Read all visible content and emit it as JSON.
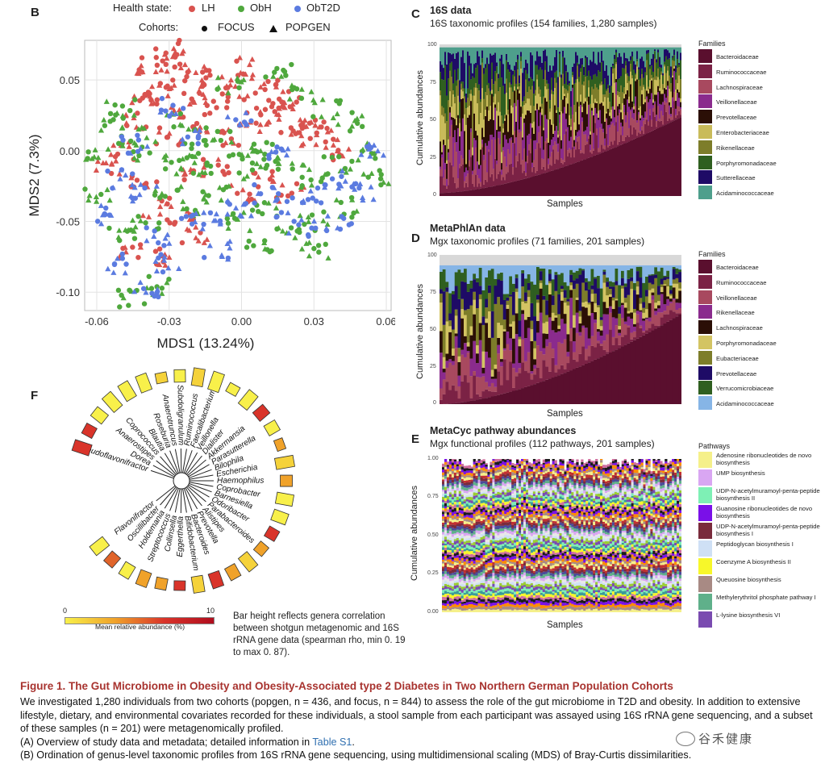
{
  "panel_b": {
    "letter": "B",
    "legend": {
      "health_title": "Health state:",
      "health": [
        {
          "label": "LH",
          "color": "#d9534f"
        },
        {
          "label": "ObH",
          "color": "#4fa83d"
        },
        {
          "label": "ObT2D",
          "color": "#5b7be0"
        }
      ],
      "cohort_title": "Cohorts:",
      "cohorts": [
        {
          "label": "FOCUS",
          "shape": "circle"
        },
        {
          "label": "POPGEN",
          "shape": "triangle"
        }
      ]
    }
  },
  "panel_c": {
    "letter": "C",
    "title": "16S data",
    "subtitle": "16S taxonomic profiles (154 families, 1,280 samples)",
    "ylabel": "Cumulative abundances",
    "xlabel": "Samples",
    "legend_title": "Families",
    "families": [
      {
        "name": "Bacteroidaceae",
        "color": "#5a0f2e"
      },
      {
        "name": "Ruminococcaceae",
        "color": "#7b2245"
      },
      {
        "name": "Lachnospiraceae",
        "color": "#a8495f"
      },
      {
        "name": "Veillonellaceae",
        "color": "#8a2b8d"
      },
      {
        "name": "Prevotellaceae",
        "color": "#2b0f06"
      },
      {
        "name": "Enterobacteriaceae",
        "color": "#c9bb5a"
      },
      {
        "name": "Rikenellaceae",
        "color": "#7d7d2a"
      },
      {
        "name": "Porphyromonadaceae",
        "color": "#2f5f20"
      },
      {
        "name": "Sutterellaceae",
        "color": "#1e0b66"
      },
      {
        "name": "Acidaminococcaceae",
        "color": "#4e9f8c"
      }
    ]
  },
  "panel_d": {
    "letter": "D",
    "title": "MetaPhlAn data",
    "subtitle": "Mgx taxonomic profiles (71 families, 201 samples)",
    "ylabel": "Cumulative abundances",
    "xlabel": "Samples",
    "legend_title": "Families",
    "families": [
      {
        "name": "Bacteroidaceae",
        "color": "#5a0f2e"
      },
      {
        "name": "Ruminococcaceae",
        "color": "#7b2245"
      },
      {
        "name": "Veillonellaceae",
        "color": "#a8495f"
      },
      {
        "name": "Rikenellaceae",
        "color": "#8a2b8d"
      },
      {
        "name": "Lachnospiraceae",
        "color": "#2b0f06"
      },
      {
        "name": "Porphyromonadaceae",
        "color": "#d3c463"
      },
      {
        "name": "Eubacteriaceae",
        "color": "#7d7d2a"
      },
      {
        "name": "Prevotellaceae",
        "color": "#1e0b66"
      },
      {
        "name": "Verrucomicrobiaceae",
        "color": "#2f5f20"
      },
      {
        "name": "Acidaminococcaceae",
        "color": "#86b5e6"
      }
    ]
  },
  "panel_e": {
    "letter": "E",
    "title": "MetaCyc pathway abundances",
    "subtitle": "Mgx functional profiles (112 pathways, 201 samples)",
    "ylabel": "Cumulative abundances",
    "xlabel": "Samples",
    "legend_title": "Pathways",
    "pathways": [
      {
        "name": "Adenosine ribonucleotides de novo biosynthesis",
        "color": "#f5f08a"
      },
      {
        "name": "UMP biosynthesis",
        "color": "#d9a6f2"
      },
      {
        "name": "UDP-N-acetylmuramoyl-penta-peptide biosynthesis II",
        "color": "#7ef0b5"
      },
      {
        "name": "Guanosine ribonucleotides de novo biosynthesis",
        "color": "#7a10e8"
      },
      {
        "name": "UDP-N-acetylmuramoyl-penta-peptide biosynthesis I",
        "color": "#7a2b3c"
      },
      {
        "name": "Peptidoglycan biosynthesis I",
        "color": "#cfe0f5"
      },
      {
        "name": "Coenzyme A biosynthesis II",
        "color": "#f7f72a"
      },
      {
        "name": "Queuosine biosynthesis",
        "color": "#a88a84"
      },
      {
        "name": "Methylerythritol phosphate pathway I",
        "color": "#5fb08a"
      },
      {
        "name": "L-lysine biosynthesis VI",
        "color": "#7a4bb0"
      }
    ]
  },
  "panel_f": {
    "letter": "F",
    "genera": [
      "Pseudoflavonifractor",
      "Dorea",
      "Anaerostipes",
      "Coprococcus",
      "Blautia",
      "Roseburia",
      "Anaerotruncus",
      "Subdoligranulum",
      "Ruminococcus",
      "Faecalibacterium",
      "Veillonella",
      "Dialister",
      "Akkermansia",
      "Parasutterella",
      "Bilophila",
      "Escherichia",
      "Haemophilus",
      "Coprobacter",
      "Barnesiella",
      "Odoribacter",
      "Parabacteroides",
      "Alistipes",
      "Prevotella",
      "Bacteroides",
      "Bifidobacterium",
      "Eggerthella",
      "Collinsella",
      "Streptococcus",
      "Holdemania",
      "Oscillibacter",
      "Flavonifractor"
    ],
    "colorbar_min": "0",
    "colorbar_max": "10",
    "colorbar_label": "Mean relative abundance (%)",
    "note": "Bar height reflects genera correlation between shotgun metagenomic and 16S rRNA gene data (spearman rho, min 0. 19 to max 0. 87)."
  },
  "caption": {
    "title": "Figure 1.  The Gut Microbiome in Obesity and Obesity-Associated type 2 Diabetes in Two Northern German Population Cohorts",
    "body_1": "We investigated 1,280 individuals from two cohorts (popgen, n = 436, and focus, n = 844) to assess the role of the gut microbiome in T2D and obesity. In addition to extensive lifestyle, dietary, and environmental covariates recorded for these individuals, a stool sample from each participant was assayed using 16S rRNA gene sequencing, and a subset of these samples (n = 201) were metagenomically profiled.",
    "body_2_pre": "(A) Overview of study data and metadata; detailed information in ",
    "body_2_link": "Table S1",
    "body_2_post": ".",
    "body_3": "(B) Ordination of genus-level taxonomic profiles from 16S rRNA gene sequencing, using multidimensional scaling (MDS) of Bray-Curtis dissimilarities."
  },
  "watermark": "谷禾健康",
  "chart_data": [
    {
      "type": "scatter",
      "title": "",
      "xlabel": "MDS1 (13.24%)",
      "ylabel": "MDS2 (7.3%)",
      "xlim": [
        -0.065,
        0.062
      ],
      "ylim": [
        -0.113,
        0.078
      ],
      "xticks": [
        "-0.06",
        "-0.03",
        "0.00",
        "0.03",
        "0.06"
      ],
      "xtick_values": [
        -0.06,
        -0.03,
        0.0,
        0.03,
        0.06
      ],
      "yticks": [
        "0.05",
        "0.00",
        "-0.05",
        "-0.10"
      ],
      "ytick_values": [
        0.05,
        0.0,
        -0.05,
        -0.1
      ],
      "grid": true,
      "legend": "top",
      "series": [
        {
          "name": "LH",
          "color": "#d9534f",
          "points": [
            [
              -0.04,
              0.06
            ],
            [
              -0.03,
              0.065
            ],
            [
              -0.02,
              0.055
            ],
            [
              -0.01,
              0.05
            ],
            [
              0.0,
              0.04
            ],
            [
              0.01,
              0.045
            ],
            [
              0.02,
              0.035
            ],
            [
              0.03,
              0.02
            ],
            [
              0.035,
              0.01
            ],
            [
              0.04,
              0.0
            ],
            [
              -0.035,
              0.04
            ],
            [
              -0.025,
              0.03
            ],
            [
              -0.015,
              0.02
            ],
            [
              -0.005,
              0.01
            ],
            [
              0.005,
              0.02
            ],
            [
              0.015,
              0.03
            ],
            [
              0.025,
              0.015
            ],
            [
              -0.045,
              0.02
            ],
            [
              -0.05,
              0.0
            ],
            [
              -0.04,
              -0.02
            ],
            [
              -0.035,
              -0.04
            ],
            [
              -0.045,
              -0.07
            ],
            [
              -0.03,
              -0.075
            ],
            [
              -0.02,
              -0.06
            ],
            [
              0.01,
              -0.02
            ],
            [
              0.02,
              -0.03
            ],
            [
              -0.03,
              0.05
            ],
            [
              -0.01,
              0.035
            ],
            [
              0.0,
              0.06
            ],
            [
              -0.02,
              0.045
            ],
            [
              0.01,
              0.025
            ],
            [
              0.02,
              0.01
            ],
            [
              -0.01,
              -0.01
            ],
            [
              -0.02,
              -0.02
            ],
            [
              0.0,
              -0.03
            ],
            [
              -0.025,
              -0.045
            ],
            [
              -0.03,
              0.01
            ],
            [
              -0.04,
              0.035
            ],
            [
              -0.055,
              -0.01
            ],
            [
              -0.028,
              0.072
            ]
          ]
        },
        {
          "name": "ObH",
          "color": "#4fa83d",
          "points": [
            [
              -0.05,
              0.03
            ],
            [
              -0.045,
              0.01
            ],
            [
              -0.04,
              0.0
            ],
            [
              -0.03,
              -0.01
            ],
            [
              -0.02,
              0.0
            ],
            [
              -0.01,
              0.01
            ],
            [
              0.0,
              0.0
            ],
            [
              0.01,
              0.0
            ],
            [
              0.02,
              -0.01
            ],
            [
              0.03,
              -0.02
            ],
            [
              0.04,
              -0.01
            ],
            [
              0.05,
              0.0
            ],
            [
              0.055,
              -0.02
            ],
            [
              0.045,
              -0.04
            ],
            [
              0.03,
              -0.05
            ],
            [
              0.02,
              -0.06
            ],
            [
              0.01,
              -0.04
            ],
            [
              0.0,
              -0.05
            ],
            [
              -0.01,
              -0.03
            ],
            [
              -0.02,
              -0.04
            ],
            [
              -0.03,
              -0.03
            ],
            [
              -0.04,
              -0.05
            ],
            [
              -0.05,
              -0.06
            ],
            [
              -0.045,
              -0.105
            ],
            [
              -0.035,
              -0.095
            ],
            [
              -0.055,
              0.02
            ],
            [
              -0.06,
              -0.03
            ],
            [
              0.025,
              0.04
            ],
            [
              0.015,
              0.055
            ],
            [
              -0.005,
              0.045
            ],
            [
              0.035,
              0.03
            ],
            [
              0.045,
              0.02
            ],
            [
              -0.015,
              -0.015
            ],
            [
              0.005,
              -0.015
            ],
            [
              -0.025,
              0.02
            ],
            [
              0.03,
              -0.07
            ],
            [
              0.008,
              -0.065
            ],
            [
              -0.06,
              -0.005
            ]
          ]
        },
        {
          "name": "ObT2D",
          "color": "#5b7be0",
          "points": [
            [
              -0.05,
              -0.02
            ],
            [
              -0.04,
              -0.03
            ],
            [
              -0.035,
              -0.06
            ],
            [
              -0.03,
              -0.08
            ],
            [
              -0.02,
              -0.05
            ],
            [
              -0.01,
              -0.045
            ],
            [
              0.0,
              -0.04
            ],
            [
              0.01,
              -0.03
            ],
            [
              0.02,
              -0.04
            ],
            [
              0.03,
              -0.03
            ],
            [
              0.04,
              -0.02
            ],
            [
              0.05,
              -0.03
            ],
            [
              0.055,
              0.0
            ],
            [
              -0.045,
              0.005
            ],
            [
              -0.03,
              0.03
            ],
            [
              -0.02,
              0.01
            ],
            [
              0.0,
              0.02
            ],
            [
              0.015,
              0.0
            ],
            [
              -0.01,
              -0.07
            ],
            [
              -0.04,
              -0.1
            ],
            [
              -0.05,
              -0.08
            ],
            [
              0.025,
              -0.055
            ],
            [
              0.04,
              -0.05
            ],
            [
              -0.055,
              -0.045
            ]
          ]
        }
      ]
    },
    {
      "type": "area",
      "title": "16S data",
      "xlabel": "Samples",
      "ylabel": "Cumulative abundances",
      "ylim": [
        0,
        100
      ],
      "yticks": [
        "0",
        "25",
        "50",
        "75",
        "100"
      ],
      "bottom_series": {
        "name": "Bacteroidaceae",
        "values_start_end": [
          2,
          52
        ]
      }
    },
    {
      "type": "area",
      "title": "MetaPhlAn data",
      "xlabel": "Samples",
      "ylabel": "Cumulative abundances",
      "ylim": [
        0,
        100
      ],
      "yticks": [
        "0",
        "25",
        "50",
        "75",
        "100"
      ],
      "bottom_series": {
        "name": "Bacteroidaceae",
        "values_start_end": [
          0,
          60
        ]
      }
    },
    {
      "type": "area",
      "title": "MetaCyc pathway abundances",
      "xlabel": "Samples",
      "ylabel": "Cumulative abundances",
      "ylim": [
        0,
        1
      ],
      "yticks": [
        "0.00",
        "0.25",
        "0.50",
        "0.75",
        "1.00"
      ]
    }
  ]
}
